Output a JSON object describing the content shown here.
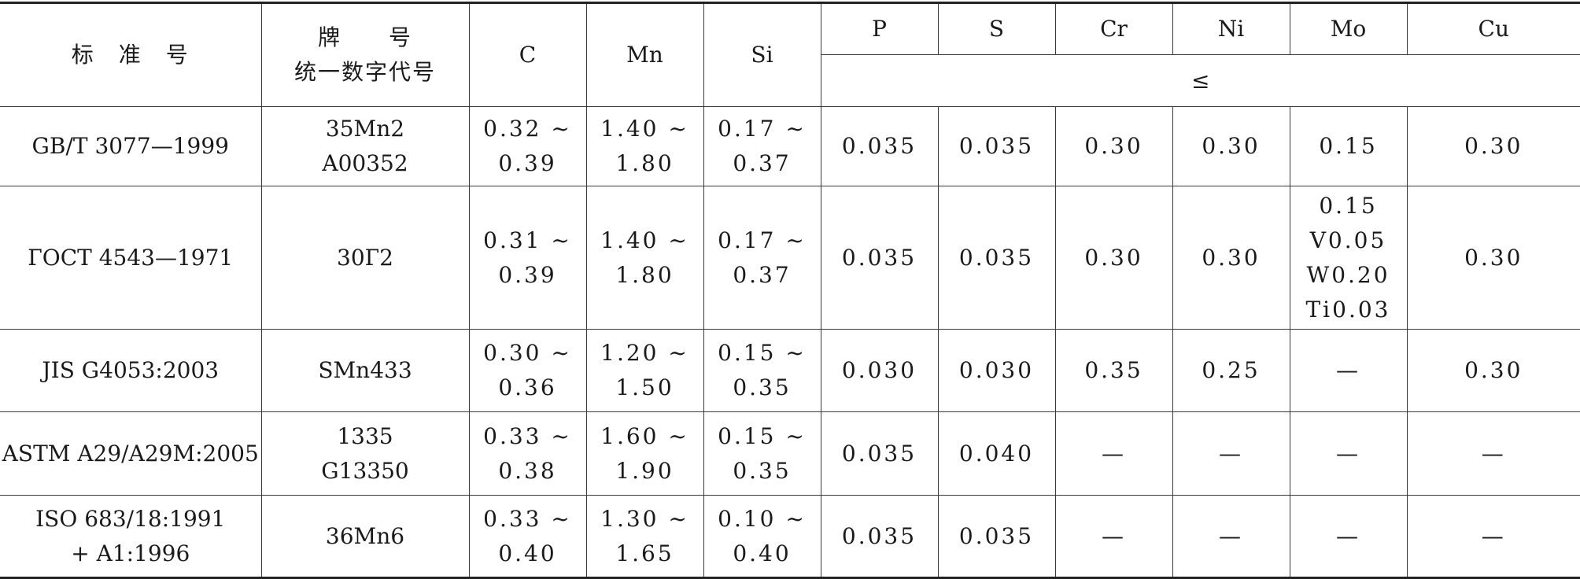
{
  "header": {
    "standard_no": "标　准　号",
    "grade_line1": "牌　　号",
    "grade_line2": "统一数字代号",
    "elements": [
      "C",
      "Mn",
      "Si",
      "P",
      "S",
      "Cr",
      "Ni",
      "Mo",
      "Cu"
    ],
    "max_symbol": "≤"
  },
  "rows": [
    {
      "standard": [
        "GB/T 3077—1999"
      ],
      "grade": [
        "35Mn2",
        "A00352"
      ],
      "C": [
        "0.32 ~",
        "0.39"
      ],
      "Mn": [
        "1.40 ~",
        "1.80"
      ],
      "Si": [
        "0.17 ~",
        "0.37"
      ],
      "P": "0.035",
      "S": "0.035",
      "Cr": "0.30",
      "Ni": "0.30",
      "Mo": [
        "0.15"
      ],
      "Cu": "0.30"
    },
    {
      "standard": [
        "ГОСТ 4543—1971"
      ],
      "grade": [
        "30Г2"
      ],
      "C": [
        "0.31 ~",
        "0.39"
      ],
      "Mn": [
        "1.40 ~",
        "1.80"
      ],
      "Si": [
        "0.17 ~",
        "0.37"
      ],
      "P": "0.035",
      "S": "0.035",
      "Cr": "0.30",
      "Ni": "0.30",
      "Mo": [
        "0.15",
        "V0.05",
        "W0.20",
        "Ti0.03"
      ],
      "Cu": "0.30"
    },
    {
      "standard": [
        "JIS G4053:2003"
      ],
      "grade": [
        "SMn433"
      ],
      "C": [
        "0.30 ~",
        "0.36"
      ],
      "Mn": [
        "1.20 ~",
        "1.50"
      ],
      "Si": [
        "0.15 ~",
        "0.35"
      ],
      "P": "0.030",
      "S": "0.030",
      "Cr": "0.35",
      "Ni": "0.25",
      "Mo": [
        "—"
      ],
      "Cu": "0.30"
    },
    {
      "standard": [
        "ASTM A29/A29M:2005"
      ],
      "grade": [
        "1335",
        "G13350"
      ],
      "C": [
        "0.33 ~",
        "0.38"
      ],
      "Mn": [
        "1.60 ~",
        "1.90"
      ],
      "Si": [
        "0.15 ~",
        "0.35"
      ],
      "P": "0.035",
      "S": "0.040",
      "Cr": "—",
      "Ni": "—",
      "Mo": [
        "—"
      ],
      "Cu": "—"
    },
    {
      "standard": [
        "ISO 683/18:1991",
        "+ A1:1996"
      ],
      "grade": [
        "36Mn6"
      ],
      "C": [
        "0.33 ~",
        "0.40"
      ],
      "Mn": [
        "1.30 ~",
        "1.65"
      ],
      "Si": [
        "0.10 ~",
        "0.40"
      ],
      "P": "0.035",
      "S": "0.035",
      "Cr": "—",
      "Ni": "—",
      "Mo": [
        "—"
      ],
      "Cu": "—"
    }
  ]
}
